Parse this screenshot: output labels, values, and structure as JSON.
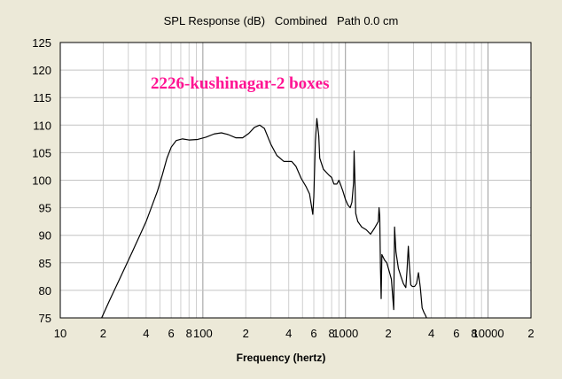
{
  "chart_data": {
    "type": "line",
    "title": "SPL Response (dB)   Combined   Path 0.0 cm",
    "xlabel": "Frequency (hertz)",
    "ylabel": "",
    "x_scale": "log",
    "xlim": [
      10,
      20000
    ],
    "ylim": [
      75,
      125
    ],
    "grid": true,
    "annotation": "2226-kushinagar-2 boxes",
    "x_ticks": [
      {
        "value": 10,
        "label": "10"
      },
      {
        "value": 20,
        "label": "2"
      },
      {
        "value": 40,
        "label": "4"
      },
      {
        "value": 60,
        "label": "6"
      },
      {
        "value": 80,
        "label": "8"
      },
      {
        "value": 100,
        "label": "100"
      },
      {
        "value": 200,
        "label": "2"
      },
      {
        "value": 400,
        "label": "4"
      },
      {
        "value": 600,
        "label": "6"
      },
      {
        "value": 800,
        "label": "8"
      },
      {
        "value": 1000,
        "label": "1000"
      },
      {
        "value": 2000,
        "label": "2"
      },
      {
        "value": 4000,
        "label": "4"
      },
      {
        "value": 6000,
        "label": "6"
      },
      {
        "value": 8000,
        "label": "8"
      },
      {
        "value": 10000,
        "label": "10000"
      },
      {
        "value": 20000,
        "label": "2"
      }
    ],
    "y_ticks": [
      75,
      80,
      85,
      90,
      95,
      100,
      105,
      110,
      115,
      120,
      125
    ],
    "series": [
      {
        "color": "#000000",
        "points": [
          [
            19.5,
            75
          ],
          [
            22,
            78
          ],
          [
            26,
            82
          ],
          [
            32,
            87
          ],
          [
            40,
            92.5
          ],
          [
            48,
            98
          ],
          [
            52,
            101
          ],
          [
            56,
            104
          ],
          [
            60,
            106
          ],
          [
            65,
            107.2
          ],
          [
            72,
            107.5
          ],
          [
            80,
            107.3
          ],
          [
            92,
            107.4
          ],
          [
            105,
            107.8
          ],
          [
            120,
            108.4
          ],
          [
            135,
            108.6
          ],
          [
            150,
            108.3
          ],
          [
            170,
            107.7
          ],
          [
            190,
            107.7
          ],
          [
            210,
            108.5
          ],
          [
            230,
            109.6
          ],
          [
            250,
            110
          ],
          [
            270,
            109.4
          ],
          [
            300,
            106.5
          ],
          [
            330,
            104.5
          ],
          [
            370,
            103.4
          ],
          [
            420,
            103.4
          ],
          [
            450,
            102.5
          ],
          [
            490,
            100.3
          ],
          [
            530,
            98.8
          ],
          [
            560,
            97.5
          ],
          [
            590,
            93.8
          ],
          [
            600,
            97
          ],
          [
            615,
            107
          ],
          [
            630,
            111.2
          ],
          [
            650,
            108
          ],
          [
            660,
            104
          ],
          [
            700,
            102
          ],
          [
            760,
            101
          ],
          [
            800,
            100.5
          ],
          [
            830,
            99.3
          ],
          [
            870,
            99.3
          ],
          [
            900,
            100
          ],
          [
            930,
            99
          ],
          [
            960,
            98
          ],
          [
            1000,
            96.5
          ],
          [
            1040,
            95.5
          ],
          [
            1080,
            95
          ],
          [
            1110,
            96
          ],
          [
            1140,
            99.5
          ],
          [
            1150,
            105.3
          ],
          [
            1165,
            100
          ],
          [
            1180,
            94
          ],
          [
            1220,
            92.5
          ],
          [
            1300,
            91.5
          ],
          [
            1400,
            91
          ],
          [
            1500,
            90.2
          ],
          [
            1600,
            91.3
          ],
          [
            1700,
            92.5
          ],
          [
            1720,
            95
          ],
          [
            1740,
            93.5
          ],
          [
            1760,
            84
          ],
          [
            1780,
            78.5
          ],
          [
            1800,
            86.5
          ],
          [
            1880,
            85.5
          ],
          [
            1950,
            85
          ],
          [
            2050,
            83
          ],
          [
            2100,
            82
          ],
          [
            2150,
            78.5
          ],
          [
            2180,
            76.5
          ],
          [
            2210,
            91.5
          ],
          [
            2260,
            87
          ],
          [
            2350,
            84
          ],
          [
            2450,
            82.5
          ],
          [
            2550,
            81.2
          ],
          [
            2650,
            80.5
          ],
          [
            2700,
            83.5
          ],
          [
            2760,
            88
          ],
          [
            2800,
            85
          ],
          [
            2870,
            81
          ],
          [
            2950,
            80.7
          ],
          [
            3050,
            80.7
          ],
          [
            3150,
            81.2
          ],
          [
            3250,
            83.2
          ],
          [
            3350,
            80.5
          ],
          [
            3450,
            76.8
          ],
          [
            3550,
            76
          ],
          [
            3650,
            75.4
          ],
          [
            3700,
            75
          ]
        ]
      }
    ]
  }
}
